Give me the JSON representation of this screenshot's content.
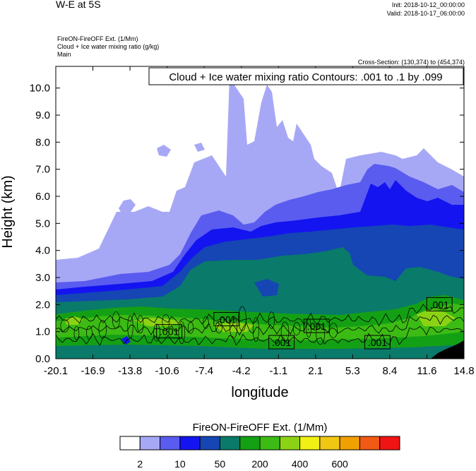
{
  "header": {
    "main_title": "W-E at 5S",
    "init": "Init: 2018-10-12_00:00:00",
    "valid": "Valid: 2018-10-17_06:00:00",
    "field1": "FireON-FireOFF Ext.   (1/Mm)",
    "field2": "Cloud + Ice water mixing ratio   (g/kg)",
    "field3": "Main",
    "cross_section": "Cross-Section: (130,374) to (454,374)"
  },
  "chart_data": {
    "type": "heatmap",
    "title": "W-E at 5S",
    "annotation": "Cloud + Ice water mixing ratio Contours: .001 to .1 by .099",
    "xlabel": "longitude",
    "ylabel": "Height (km)",
    "xlim": [
      -20.1,
      14.8
    ],
    "ylim": [
      0.0,
      10.8
    ],
    "x_ticks": [
      "-20.1",
      "-16.9",
      "-13.8",
      "-10.6",
      "-7.4",
      "-4.2",
      "-1.1",
      "2.1",
      "5.3",
      "8.4",
      "11.6",
      "14.8"
    ],
    "y_ticks": [
      "0.0",
      "1.0",
      "2.0",
      "3.0",
      "4.0",
      "5.0",
      "6.0",
      "7.0",
      "8.0",
      "9.0",
      "10.0"
    ],
    "contour_labels": [
      {
        "text": ".001",
        "x": -10.4,
        "y": 1.0
      },
      {
        "text": ".001",
        "x": -5.5,
        "y": 1.45
      },
      {
        "text": ".001",
        "x": 2.2,
        "y": 1.2
      },
      {
        "text": ".001",
        "x": -0.8,
        "y": 0.6
      },
      {
        "text": ".001",
        "x": 7.4,
        "y": 0.6
      },
      {
        "text": ".001",
        "x": 12.7,
        "y": 2.0
      }
    ],
    "colorbar": {
      "title": "FireON-FireOFF Ext.  (1/Mm)",
      "colors": [
        "#ffffff",
        "#a7a8f5",
        "#5a5cf0",
        "#1414f0",
        "#1546b4",
        "#0a7a6a",
        "#14a014",
        "#3cbb14",
        "#8cd214",
        "#f0f014",
        "#f0c814",
        "#f0a000",
        "#f05a14",
        "#f01414"
      ],
      "labels": [
        "2",
        "10",
        "50",
        "200",
        "400",
        "600"
      ]
    }
  }
}
